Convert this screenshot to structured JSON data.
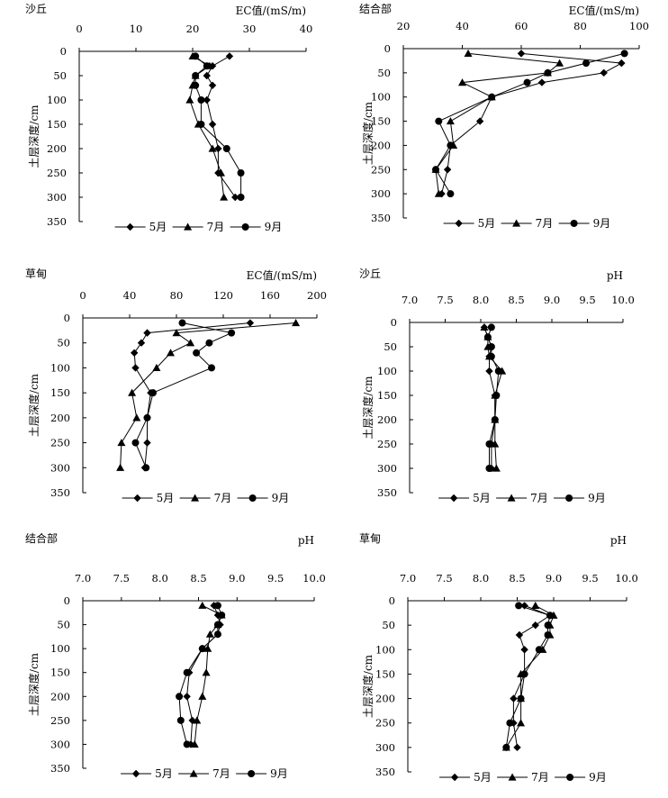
{
  "legend": {
    "may": "5月",
    "jul": "7月",
    "sep": "9月"
  },
  "chart_data": [
    {
      "type": "line",
      "title": "沙丘",
      "xlabel": "EC值/(mS/m)",
      "ylabel": "土层深度/cm",
      "xlim": [
        0,
        40
      ],
      "xticks": [
        0,
        10,
        20,
        30,
        40
      ],
      "ylim": [
        0,
        350
      ],
      "yticks": [
        0,
        50,
        100,
        150,
        200,
        250,
        300,
        350
      ],
      "y": [
        10,
        30,
        50,
        70,
        100,
        150,
        200,
        250,
        300
      ],
      "series": [
        {
          "name": "5月",
          "values": [
            26.5,
            23.5,
            22.5,
            23.5,
            22.5,
            23.5,
            24.5,
            24.5,
            27.5
          ]
        },
        {
          "name": "7月",
          "values": [
            20,
            23,
            20.5,
            20,
            19.5,
            21,
            23.5,
            25,
            25.5
          ]
        },
        {
          "name": "9月",
          "values": [
            20.5,
            22.5,
            20.5,
            20.5,
            21.5,
            21.5,
            26,
            28.5,
            28.5
          ]
        }
      ],
      "legend_position": "bottom"
    },
    {
      "type": "line",
      "title": "结合部",
      "xlabel": "EC值/(mS/m)",
      "ylabel": "土层深度/cm",
      "xlim": [
        20,
        100
      ],
      "xticks": [
        20,
        40,
        60,
        80,
        100
      ],
      "ylim": [
        0,
        350
      ],
      "yticks": [
        0,
        50,
        100,
        150,
        200,
        250,
        300,
        350
      ],
      "y": [
        10,
        30,
        50,
        70,
        100,
        150,
        200,
        250,
        300
      ],
      "series": [
        {
          "name": "5月",
          "values": [
            60,
            94,
            88,
            67,
            50,
            46,
            36,
            35,
            33
          ]
        },
        {
          "name": "7月",
          "values": [
            42,
            73,
            69,
            40,
            50,
            36,
            37,
            31,
            32
          ]
        },
        {
          "name": "9月",
          "values": [
            95,
            82,
            69,
            62,
            50,
            32,
            36,
            31,
            36
          ]
        }
      ],
      "legend_position": "bottom"
    },
    {
      "type": "line",
      "title": "草甸",
      "xlabel": "EC值/(mS/m)",
      "ylabel": "土层深度/cm",
      "xlim": [
        0,
        200
      ],
      "xticks": [
        0,
        40,
        80,
        120,
        160,
        200
      ],
      "ylim": [
        0,
        350
      ],
      "yticks": [
        0,
        50,
        100,
        150,
        200,
        250,
        300,
        350
      ],
      "y": [
        10,
        30,
        50,
        70,
        100,
        150,
        200,
        250,
        300
      ],
      "series": [
        {
          "name": "5月",
          "values": [
            143,
            55,
            50,
            44,
            45,
            58,
            55,
            55,
            53
          ]
        },
        {
          "name": "7月",
          "values": [
            182,
            80,
            92,
            75,
            63,
            42,
            46,
            33,
            32
          ]
        },
        {
          "name": "9月",
          "values": [
            85,
            127,
            108,
            97,
            110,
            60,
            55,
            45,
            54
          ]
        }
      ],
      "legend_position": "bottom"
    },
    {
      "type": "line",
      "title": "沙丘",
      "xlabel": "pH",
      "ylabel": "土层深度/cm",
      "xlim": [
        7.0,
        10.0
      ],
      "xticks": [
        "7.0",
        "7.5",
        "8.0",
        "8.5",
        "9.0",
        "9.5",
        "10.0"
      ],
      "ylim": [
        0,
        350
      ],
      "yticks": [
        0,
        50,
        100,
        150,
        200,
        250,
        300,
        350
      ],
      "y": [
        10,
        30,
        50,
        70,
        100,
        150,
        200,
        250,
        300
      ],
      "series": [
        {
          "name": "5月",
          "values": [
            8.05,
            8.1,
            8.15,
            8.12,
            8.12,
            8.2,
            8.2,
            8.15,
            8.15
          ]
        },
        {
          "name": "7月",
          "values": [
            8.05,
            8.1,
            8.1,
            8.12,
            8.3,
            8.2,
            8.2,
            8.2,
            8.22
          ]
        },
        {
          "name": "9月",
          "values": [
            8.15,
            8.1,
            8.15,
            8.15,
            8.25,
            8.22,
            8.2,
            8.12,
            8.12
          ]
        }
      ],
      "legend_position": "bottom"
    },
    {
      "type": "line",
      "title": "结合部",
      "xlabel": "pH",
      "ylabel": "土层深度/cm",
      "xlim": [
        7.0,
        10.0
      ],
      "xticks": [
        "7.0",
        "7.5",
        "8.0",
        "8.5",
        "9.0",
        "9.5",
        "10.0"
      ],
      "ylim": [
        0,
        350
      ],
      "yticks": [
        0,
        50,
        100,
        150,
        200,
        250,
        300,
        350
      ],
      "y": [
        10,
        30,
        50,
        70,
        100,
        150,
        200,
        250,
        300
      ],
      "series": [
        {
          "name": "5月",
          "values": [
            8.7,
            8.75,
            8.78,
            8.75,
            8.55,
            8.38,
            8.35,
            8.42,
            8.4
          ]
        },
        {
          "name": "7月",
          "values": [
            8.55,
            8.8,
            8.75,
            8.65,
            8.62,
            8.6,
            8.55,
            8.48,
            8.45
          ]
        },
        {
          "name": "9月",
          "values": [
            8.75,
            8.8,
            8.75,
            8.75,
            8.55,
            8.35,
            8.25,
            8.27,
            8.35
          ]
        }
      ],
      "legend_position": "bottom"
    },
    {
      "type": "line",
      "title": "草甸",
      "xlabel": "pH",
      "ylabel": "土层深度/cm",
      "xlim": [
        7.0,
        10.0
      ],
      "xticks": [
        "7.0",
        "7.5",
        "8.0",
        "8.5",
        "9.0",
        "9.5",
        "10.0"
      ],
      "ylim": [
        0,
        350
      ],
      "yticks": [
        0,
        50,
        100,
        150,
        200,
        250,
        300,
        350
      ],
      "y": [
        10,
        30,
        50,
        70,
        100,
        150,
        200,
        250,
        300
      ],
      "series": [
        {
          "name": "5月",
          "values": [
            8.6,
            8.95,
            8.75,
            8.53,
            8.6,
            8.6,
            8.45,
            8.45,
            8.5
          ]
        },
        {
          "name": "7月",
          "values": [
            8.75,
            9.0,
            8.95,
            8.95,
            8.85,
            8.55,
            8.55,
            8.55,
            8.35
          ]
        },
        {
          "name": "9月",
          "values": [
            8.52,
            8.95,
            8.92,
            8.92,
            8.8,
            8.6,
            8.55,
            8.4,
            8.35
          ]
        }
      ],
      "legend_position": "bottom"
    }
  ]
}
